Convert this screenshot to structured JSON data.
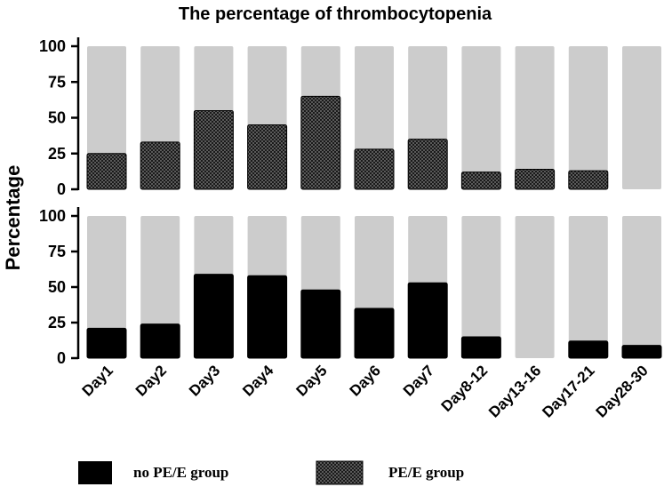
{
  "chart_data": {
    "type": "bar",
    "title": "The percentage of thrombocytopenia",
    "xlabel": "",
    "ylabel": "Percentage",
    "ylim": [
      0,
      100
    ],
    "yticks": [
      "0",
      "25",
      "50",
      "75",
      "100"
    ],
    "categories": [
      "Day1",
      "Day2",
      "Day3",
      "Day4",
      "Day5",
      "Day6",
      "Day7",
      "Day8-12",
      "Day13-16",
      "Day17-21",
      "Day28-30"
    ],
    "background_bar_value": 100,
    "panels": [
      {
        "position": "top",
        "series_name": "PE/E group",
        "values": [
          25,
          33,
          55,
          45,
          65,
          28,
          35,
          12,
          14,
          13,
          0
        ]
      },
      {
        "position": "bottom",
        "series_name": "no PE/E group",
        "values": [
          21,
          24,
          59,
          58,
          48,
          35,
          53,
          15,
          0,
          12,
          9
        ]
      }
    ],
    "legend": [
      {
        "label": "no PE/E group",
        "style": "solid-black"
      },
      {
        "label": "PE/E group",
        "style": "checkered"
      }
    ],
    "legend_placement": "bottom"
  },
  "colors": {
    "background_bar": "#cccccc",
    "no_pe_bar": "#000000",
    "pe_bar_dark": "#1a1a1a",
    "pe_bar_light": "#5a5a5a"
  }
}
